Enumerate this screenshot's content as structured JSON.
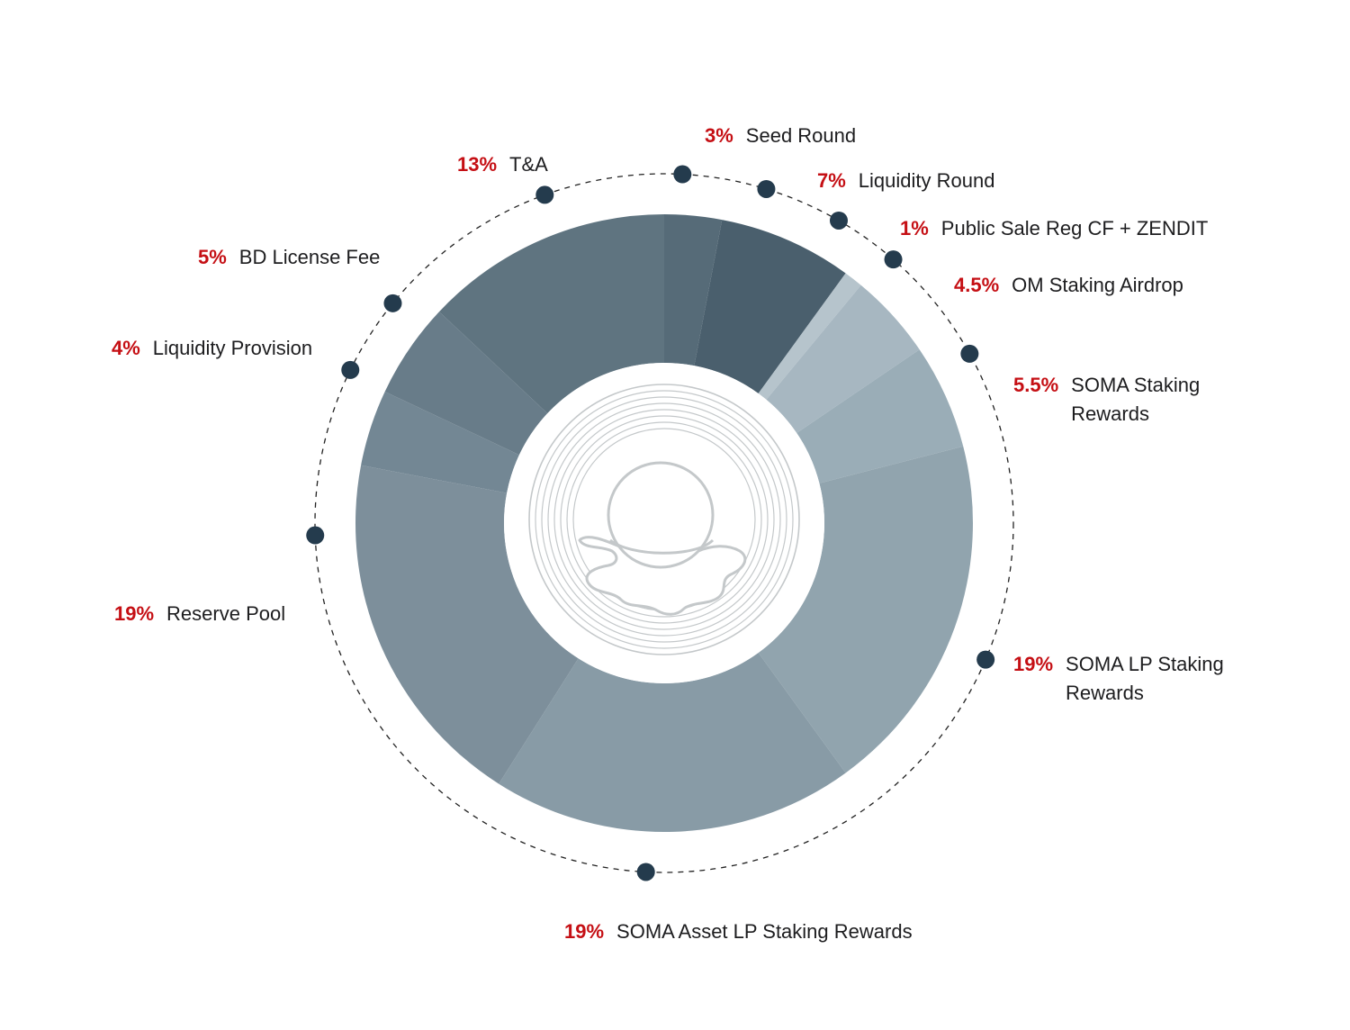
{
  "chart_data": {
    "type": "pie",
    "variant": "donut",
    "slices": [
      {
        "percent_label": "3%",
        "label": "Seed Round",
        "value": 3,
        "color": "#566b78"
      },
      {
        "percent_label": "7%",
        "label": "Liquidity Round",
        "value": 7,
        "color": "#4a5f6d"
      },
      {
        "percent_label": "1%",
        "label": "Public Sale Reg CF + ZENDIT",
        "value": 1,
        "color": "#b6c4cc"
      },
      {
        "percent_label": "4.5%",
        "label": "OM Staking Airdrop",
        "value": 4.5,
        "color": "#a7b7c1"
      },
      {
        "percent_label": "5.5%",
        "label": "SOMA Staking Rewards",
        "value": 5.5,
        "color": "#9aadb7"
      },
      {
        "percent_label": "19%",
        "label": "SOMA LP Staking Rewards",
        "value": 19,
        "color": "#91a4ae"
      },
      {
        "percent_label": "19%",
        "label": "SOMA Asset LP Staking Rewards",
        "value": 19,
        "color": "#889ba6"
      },
      {
        "percent_label": "19%",
        "label": "Reserve Pool",
        "value": 19,
        "color": "#7d8f9b"
      },
      {
        "percent_label": "4%",
        "label": "Liquidity Provision",
        "value": 4,
        "color": "#738794"
      },
      {
        "percent_label": "5%",
        "label": "BD License Fee",
        "value": 5,
        "color": "#687c89"
      },
      {
        "percent_label": "13%",
        "label": "T&A",
        "value": 13,
        "color": "#5f7480"
      }
    ],
    "colors": {
      "percent_text": "#c50f14",
      "marker": "#243b4d",
      "dashed_ring": "#222222",
      "logo_stroke": "#c4c8ca"
    }
  }
}
